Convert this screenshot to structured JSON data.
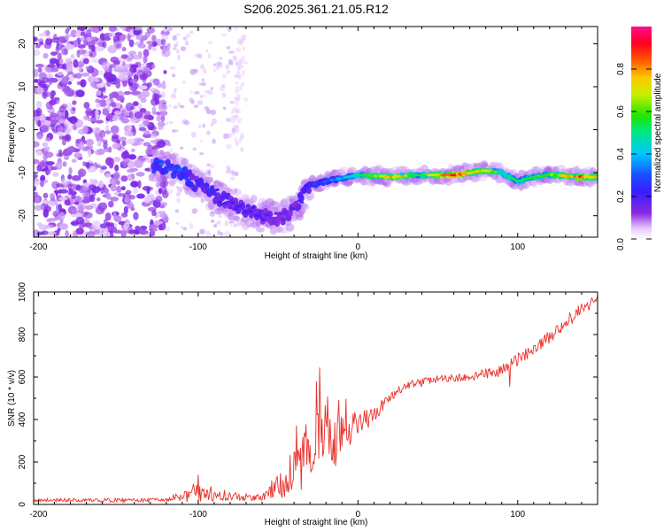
{
  "title": "S206.2025.361.21.05.R12",
  "chart_data": [
    {
      "type": "heatmap",
      "xlabel": "Height of straight line (km)",
      "ylabel": "Frequency (Hz)",
      "xlim": [
        -203,
        150
      ],
      "ylim": [
        -25,
        24
      ],
      "xticks": [
        -200,
        -100,
        0,
        100
      ],
      "yticks": [
        -20,
        -10,
        0,
        10,
        20
      ],
      "xtick_labels": [
        "-200",
        "-100",
        "0",
        "100"
      ],
      "ytick_labels": [
        "-20",
        "-10",
        "0",
        "10",
        "20"
      ],
      "colorbar": {
        "label": "Normalized spectral amplitude",
        "range": [
          0,
          1
        ],
        "ticks": [
          0.0,
          0.2,
          0.4,
          0.6,
          0.8
        ],
        "tick_labels": [
          "0.0",
          "0.2",
          "0.4",
          "0.6",
          "0.8"
        ]
      },
      "ridge": {
        "description_points_x": [
          -125,
          -110,
          -100,
          -90,
          -80,
          -70,
          -60,
          -50,
          -40,
          -30,
          -20,
          0,
          20,
          40,
          60,
          80,
          90,
          100,
          110,
          120,
          140,
          150
        ],
        "description_points_y": [
          -8.5,
          -10,
          -13,
          -15,
          -17,
          -19,
          -20,
          -21,
          -19,
          -13,
          -12,
          -10.5,
          -11,
          -10.5,
          -10.5,
          -9.5,
          -10,
          -12,
          -11,
          -10.5,
          -11,
          -11
        ],
        "peak_amplitude": [
          0.3,
          0.3,
          0.25,
          0.25,
          0.2,
          0.2,
          0.2,
          0.15,
          0.2,
          0.25,
          0.3,
          0.5,
          0.8,
          0.55,
          0.9,
          0.7,
          0.5,
          0.55,
          0.55,
          0.6,
          0.85,
          0.7
        ]
      }
    },
    {
      "type": "line",
      "xlabel": "Height of straight line (km)",
      "ylabel": "SNR (10 * v/v)",
      "xlim": [
        -203,
        150
      ],
      "ylim": [
        0,
        1000
      ],
      "xticks": [
        -200,
        -100,
        0,
        100
      ],
      "yticks": [
        0,
        200,
        400,
        600,
        800,
        1000
      ],
      "xtick_labels": [
        "-200",
        "-100",
        "0",
        "100"
      ],
      "ytick_labels": [
        "0",
        "200",
        "400",
        "600",
        "800",
        "1000"
      ],
      "series": [
        {
          "name": "SNR",
          "color": "#e8302a",
          "trend_x": [
            -203,
            -120,
            -100,
            -80,
            -60,
            -40,
            -30,
            -20,
            -10,
            0,
            10,
            20,
            30,
            50,
            70,
            90,
            100,
            120,
            140,
            150
          ],
          "trend_y": [
            20,
            20,
            60,
            40,
            30,
            160,
            230,
            270,
            310,
            370,
            420,
            500,
            560,
            590,
            600,
            630,
            680,
            790,
            920,
            960
          ],
          "noise_amplitude": [
            8,
            10,
            50,
            20,
            15,
            120,
            160,
            140,
            110,
            70,
            40,
            25,
            20,
            18,
            20,
            30,
            30,
            30,
            30,
            30
          ],
          "spikes": [
            {
              "x": -24,
              "y": 645
            },
            {
              "x": -26,
              "y": 580
            },
            {
              "x": -100,
              "y": 140
            },
            {
              "x": 95,
              "y": 555
            }
          ]
        }
      ]
    }
  ]
}
